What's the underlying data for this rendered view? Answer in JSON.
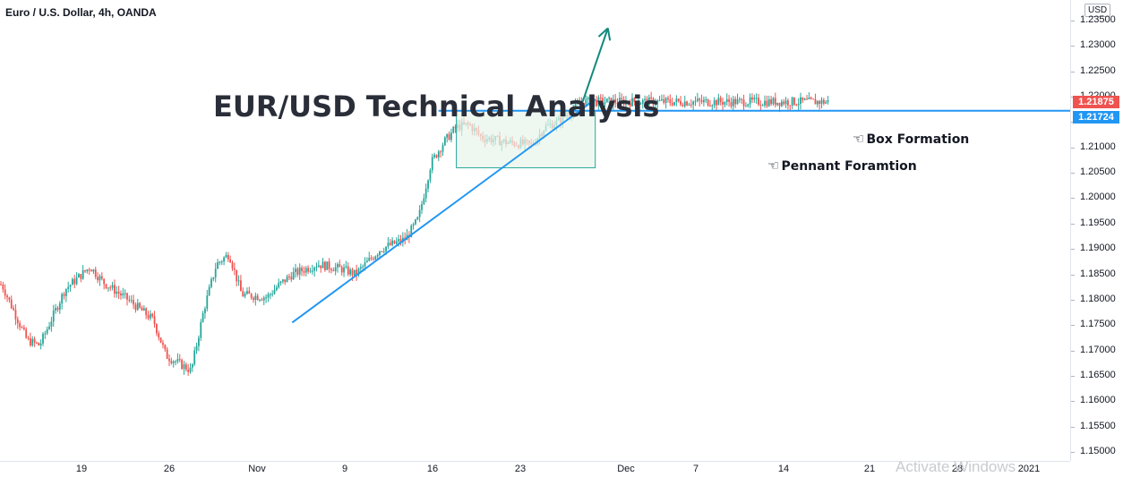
{
  "header": {
    "symbol_title": "Euro / U.S. Dollar, 4h, OANDA"
  },
  "annotations": {
    "main_title": "EUR/USD Technical Analysis",
    "box_label": "Box Formation",
    "pennant_label": "Pennant Foramtion",
    "hand_icon": "pointing-hand-icon"
  },
  "price_axis": {
    "currency": "USD",
    "ticks": [
      "1.23500",
      "1.23000",
      "1.22500",
      "1.22000",
      "1.21500",
      "1.21000",
      "1.20500",
      "1.20000",
      "1.19500",
      "1.19000",
      "1.18500",
      "1.18000",
      "1.17500",
      "1.17000",
      "1.16500",
      "1.16000",
      "1.15500",
      "1.15000"
    ],
    "last_price": "1.21875",
    "line_price": "1.21724"
  },
  "time_axis": {
    "ticks": [
      "19",
      "26",
      "Nov",
      "9",
      "16",
      "23",
      "Dec",
      "7",
      "14",
      "21",
      "28",
      "2021"
    ]
  },
  "watermark": "Activate Windows",
  "colors": {
    "up": "#26a69a",
    "down": "#ef5350",
    "trendline": "#2196f3",
    "arrow": "#138a7e",
    "box_fill": "#e8f5e9",
    "box_border": "#26a69a",
    "last_price_bg": "#ef5350",
    "line_price_bg": "#2196f3"
  },
  "chart_data": {
    "type": "candlestick",
    "title": "Euro / U.S. Dollar, 4h, OANDA",
    "ylim": [
      1.1495,
      1.2385
    ],
    "y_scale": "linear",
    "grid": false,
    "x_ticks": [
      "19",
      "26",
      "Nov",
      "9",
      "16",
      "23",
      "Dec",
      "7",
      "14",
      "21",
      "28",
      "2021"
    ],
    "close_path": [
      {
        "date": "2020-10-14",
        "close": 1.183
      },
      {
        "date": "2020-10-16",
        "close": 1.172
      },
      {
        "date": "2020-10-19",
        "close": 1.171
      },
      {
        "date": "2020-10-21",
        "close": 1.182
      },
      {
        "date": "2020-10-23",
        "close": 1.1865
      },
      {
        "date": "2020-10-26",
        "close": 1.1835
      },
      {
        "date": "2020-10-28",
        "close": 1.18
      },
      {
        "date": "2020-10-30",
        "close": 1.176
      },
      {
        "date": "2020-11-02",
        "close": 1.169
      },
      {
        "date": "2020-11-04",
        "close": 1.166
      },
      {
        "date": "2020-11-05",
        "close": 1.178
      },
      {
        "date": "2020-11-06",
        "close": 1.187
      },
      {
        "date": "2020-11-09",
        "close": 1.189
      },
      {
        "date": "2020-11-10",
        "close": 1.181
      },
      {
        "date": "2020-11-12",
        "close": 1.1805
      },
      {
        "date": "2020-11-13",
        "close": 1.183
      },
      {
        "date": "2020-11-16",
        "close": 1.185
      },
      {
        "date": "2020-11-18",
        "close": 1.187
      },
      {
        "date": "2020-11-20",
        "close": 1.186
      },
      {
        "date": "2020-11-23",
        "close": 1.185
      },
      {
        "date": "2020-11-25",
        "close": 1.19
      },
      {
        "date": "2020-11-27",
        "close": 1.192
      },
      {
        "date": "2020-11-30",
        "close": 1.196
      },
      {
        "date": "2020-12-01",
        "close": 1.207
      },
      {
        "date": "2020-12-02",
        "close": 1.211
      },
      {
        "date": "2020-12-03",
        "close": 1.214
      },
      {
        "date": "2020-12-04",
        "close": 1.2145
      },
      {
        "date": "2020-12-07",
        "close": 1.212
      },
      {
        "date": "2020-12-09",
        "close": 1.211
      },
      {
        "date": "2020-12-11",
        "close": 1.2105
      },
      {
        "date": "2020-12-14",
        "close": 1.214
      },
      {
        "date": "2020-12-15",
        "close": 1.215
      },
      {
        "date": "2020-12-16",
        "close": 1.217
      },
      {
        "date": "2020-12-17",
        "close": 1.219
      }
    ],
    "trendlines": [
      {
        "name": "ascending support",
        "from": {
          "date": "2020-11-16",
          "price": 1.1755
        },
        "to": {
          "date": "2020-12-18",
          "price": 1.2195
        }
      },
      {
        "name": "resistance",
        "price": 1.21724
      }
    ],
    "box": {
      "from_date": "2020-12-03",
      "to_date": "2020-12-18",
      "top": 1.21724,
      "bottom": 1.206
    },
    "arrow": {
      "from": {
        "date": "2020-12-17",
        "price": 1.219
      },
      "to": {
        "date": "2020-12-21",
        "price": 1.2335
      }
    }
  }
}
